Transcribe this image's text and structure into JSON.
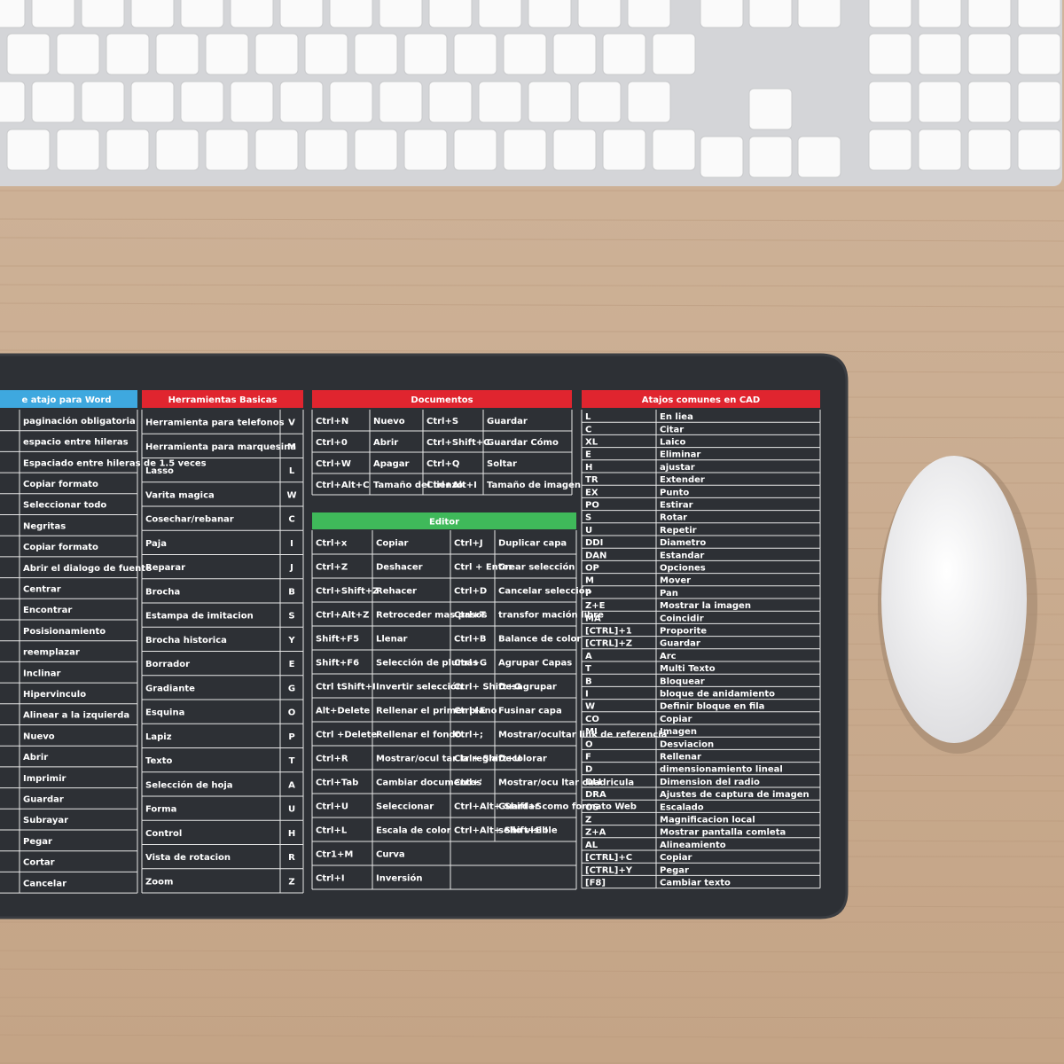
{
  "word_table": {
    "title": "e atajo para Word",
    "rows": [
      [
        "paginación obligatoria"
      ],
      [
        "espacio entre hileras"
      ],
      [
        "Espaciado entre hileras de 1.5 veces"
      ],
      [
        "Copiar formato"
      ],
      [
        "Seleccionar todo"
      ],
      [
        "Negritas"
      ],
      [
        "Copiar formato"
      ],
      [
        "Abrir el dialogo de fuente"
      ],
      [
        "Centrar"
      ],
      [
        "Encontrar"
      ],
      [
        "Posisionamiento"
      ],
      [
        "reemplazar"
      ],
      [
        "Inclinar"
      ],
      [
        "Hipervinculo"
      ],
      [
        "Alinear a la izquierda"
      ],
      [
        "Nuevo"
      ],
      [
        "Abrir"
      ],
      [
        "Imprimir"
      ],
      [
        "Guardar"
      ],
      [
        "Subrayar"
      ],
      [
        "Pegar"
      ],
      [
        "Cortar"
      ],
      [
        "Cancelar"
      ]
    ]
  },
  "basic_tools": {
    "title": "Herramientas Basicas",
    "rows": [
      [
        "Herramienta para telefonos",
        "V"
      ],
      [
        "Herramienta para marquesina",
        "M"
      ],
      [
        "Lasso",
        "L"
      ],
      [
        "Varita magica",
        "W"
      ],
      [
        "Cosechar/rebanar",
        "C"
      ],
      [
        "Paja",
        "I"
      ],
      [
        "Reparar",
        "J"
      ],
      [
        "Brocha",
        "B"
      ],
      [
        "Estampa de imitacion",
        "S"
      ],
      [
        "Brocha historica",
        "Y"
      ],
      [
        "Borrador",
        "E"
      ],
      [
        "Gradiante",
        "G"
      ],
      [
        "Esquina",
        "O"
      ],
      [
        "Lapiz",
        "P"
      ],
      [
        "Texto",
        "T"
      ],
      [
        "Selección de hoja",
        "A"
      ],
      [
        "Forma",
        "U"
      ],
      [
        "Control",
        "H"
      ],
      [
        "Vista de rotacion",
        "R"
      ],
      [
        "Zoom",
        "Z"
      ]
    ]
  },
  "documents": {
    "title": "Documentos",
    "rows": [
      [
        "Ctrl+N",
        "Nuevo",
        "Ctrl+S",
        "Guardar"
      ],
      [
        "Ctrl+0",
        "Abrir",
        "Ctrl+Shift+C",
        "Guardar Cómo"
      ],
      [
        "Ctrl+W",
        "Apagar",
        "Ctrl+Q",
        "Soltar"
      ],
      [
        "Ctrl+Alt+C",
        "Tamaño del lienzo",
        "Ctrl+Alt+I",
        "Tamaño de imagen"
      ]
    ]
  },
  "editor": {
    "title": "Editor",
    "rows": [
      [
        "Ctrl+x",
        "Copiar",
        "Ctrl+J",
        "Duplicar capa"
      ],
      [
        "Ctrl+Z",
        "Deshacer",
        "Ctrl + Enter",
        "Crear selección"
      ],
      [
        "Ctrl+Shift+Z",
        "Rehacer",
        "Ctrl+D",
        "Cancelar selección"
      ],
      [
        "Ctrl+Alt+Z",
        "Retroceder mas pasos",
        "Ctrl+T",
        "transfor mación libre"
      ],
      [
        "Shift+F5",
        "Llenar",
        "Ctrl+B",
        "Balance de color"
      ],
      [
        "Shift+F6",
        "Selección de plumas",
        "Ctrl+G",
        "Agrupar Capas"
      ],
      [
        "Ctrl tShift+I",
        "Invertir selección",
        "Ctrl+ Shift+G",
        "Desagrupar"
      ],
      [
        "Alt+Delete",
        "Rellenar el primer plano",
        "Ctrl+E",
        "Fusinar capa"
      ],
      [
        "Ctrl +Delete",
        "Rellenar el fondo",
        "Ctrl+;",
        "Mostrar/ocultar link de referencia"
      ],
      [
        "Ctrl+R",
        "Mostrar/ocul tar la regla",
        "Ctrl+ Shift+U",
        "Decolorar"
      ],
      [
        "Ctrl+Tab",
        "Cambiar documentos",
        "Ctrl+'",
        "Mostrar/ocu ltar cuadricula"
      ],
      [
        "Ctrl+U",
        "Seleccionar",
        "Ctrl+Alt+ Shift+S",
        "Guardar como formato Web"
      ],
      [
        "Ctrl+L",
        "Escala de color",
        "Ctrl+Alt+ Shift+E I",
        "sello visible"
      ],
      [
        "Ctr1+M",
        "Curva"
      ],
      [
        "Ctrl+I",
        "Inversión"
      ]
    ]
  },
  "cad": {
    "title": "Atajos comunes en CAD",
    "rows": [
      [
        "L",
        "En liea"
      ],
      [
        "C",
        "Citar"
      ],
      [
        "XL",
        "Laico"
      ],
      [
        "E",
        "Eliminar"
      ],
      [
        "H",
        "ajustar"
      ],
      [
        "TR",
        "Extender"
      ],
      [
        "EX",
        "Punto"
      ],
      [
        "PO",
        "Estirar"
      ],
      [
        "S",
        "Rotar"
      ],
      [
        "U",
        "Repetir"
      ],
      [
        "DDI",
        "Diametro"
      ],
      [
        "DAN",
        "Estandar"
      ],
      [
        "OP",
        "Opciones"
      ],
      [
        "M",
        "Mover"
      ],
      [
        "P",
        "Pan"
      ],
      [
        "Z+E",
        "Mostrar la imagen"
      ],
      [
        "MA",
        "Coincidir"
      ],
      [
        "[CTRL]+1",
        "Proporite"
      ],
      [
        "[CTRL]+Z",
        "Guardar"
      ],
      [
        "A",
        "Arc"
      ],
      [
        "T",
        "Multi Texto"
      ],
      [
        "B",
        "Bloquear"
      ],
      [
        "I",
        "bloque de anidamiento"
      ],
      [
        "W",
        "Definir bloque en fila"
      ],
      [
        "CO",
        "Copiar"
      ],
      [
        "MI",
        "Imagen"
      ],
      [
        "O",
        "Desviacion"
      ],
      [
        "F",
        "Rellenar"
      ],
      [
        "D",
        "dimensionamiento lineal"
      ],
      [
        "DLI",
        "Dimension del radio"
      ],
      [
        "DRA",
        "Ajustes de captura de imagen"
      ],
      [
        "OS",
        "Escalado"
      ],
      [
        "Z",
        "Magnificacion local"
      ],
      [
        "Z+A",
        "Mostrar pantalla comleta"
      ],
      [
        "AL",
        "Alineamiento"
      ],
      [
        "[CTRL]+C",
        "Copiar"
      ],
      [
        "[CTRL]+Y",
        "Pegar"
      ],
      [
        "[F8]",
        "Cambiar texto"
      ]
    ]
  }
}
